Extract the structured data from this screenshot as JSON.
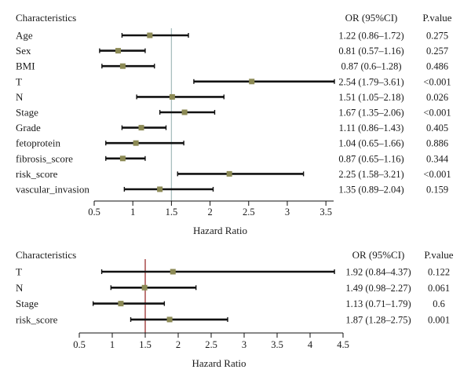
{
  "chart_data": [
    {
      "type": "forest",
      "header_label": "Characteristics",
      "header_or": "OR (95%CI)",
      "header_p": "P.value",
      "xlabel": "Hazard Ratio",
      "xlim": [
        0.5,
        3.6
      ],
      "xticks": [
        "0.5",
        "1",
        "1.5",
        "2",
        "2.5",
        "3",
        "3.5"
      ],
      "reference_line": 1.5,
      "reference_color": "#a9bfbf",
      "point_color": "#8c8a55",
      "rows": [
        {
          "label": "Age",
          "or": 1.22,
          "lo": 0.86,
          "hi": 1.72,
          "or_text": "1.22 (0.86–1.72)",
          "p": "0.275"
        },
        {
          "label": "Sex",
          "or": 0.81,
          "lo": 0.57,
          "hi": 1.16,
          "or_text": "0.81 (0.57–1.16)",
          "p": "0.257"
        },
        {
          "label": "BMI",
          "or": 0.87,
          "lo": 0.6,
          "hi": 1.28,
          "or_text": "0.87 (0.6–1.28)",
          "p": "0.486"
        },
        {
          "label": "T",
          "or": 2.54,
          "lo": 1.79,
          "hi": 3.61,
          "or_text": "2.54 (1.79–3.61)",
          "p": "<0.001"
        },
        {
          "label": "N",
          "or": 1.51,
          "lo": 1.05,
          "hi": 2.18,
          "or_text": "1.51 (1.05–2.18)",
          "p": "0.026"
        },
        {
          "label": "Stage",
          "or": 1.67,
          "lo": 1.35,
          "hi": 2.06,
          "or_text": "1.67 (1.35–2.06)",
          "p": "<0.001"
        },
        {
          "label": "Grade",
          "or": 1.11,
          "lo": 0.86,
          "hi": 1.43,
          "or_text": "1.11 (0.86–1.43)",
          "p": "0.405"
        },
        {
          "label": "fetoprotein",
          "or": 1.04,
          "lo": 0.65,
          "hi": 1.66,
          "or_text": "1.04 (0.65–1.66)",
          "p": "0.886"
        },
        {
          "label": "fibrosis_score",
          "or": 0.87,
          "lo": 0.65,
          "hi": 1.16,
          "or_text": "0.87 (0.65–1.16)",
          "p": "0.344"
        },
        {
          "label": "risk_score",
          "or": 2.25,
          "lo": 1.58,
          "hi": 3.21,
          "or_text": "2.25 (1.58–3.21)",
          "p": "<0.001"
        },
        {
          "label": "vascular_invasion",
          "or": 1.35,
          "lo": 0.89,
          "hi": 2.04,
          "or_text": "1.35 (0.89–2.04)",
          "p": "0.159"
        }
      ]
    },
    {
      "type": "forest",
      "header_label": "Characteristics",
      "header_or": "OR (95%CI)",
      "header_p": "P.value",
      "xlabel": "Hazard Ratio",
      "xlim": [
        0.5,
        4.5
      ],
      "xticks": [
        "0.5",
        "1",
        "1.5",
        "2",
        "2.5",
        "3",
        "3.5",
        "4",
        "4.5"
      ],
      "reference_line": 1.5,
      "reference_color": "#9a3030",
      "point_color": "#8c8a55",
      "rows": [
        {
          "label": "T",
          "or": 1.92,
          "lo": 0.84,
          "hi": 4.37,
          "or_text": "1.92 (0.84–4.37)",
          "p": "0.122"
        },
        {
          "label": "N",
          "or": 1.49,
          "lo": 0.98,
          "hi": 2.27,
          "or_text": "1.49 (0.98–2.27)",
          "p": "0.061"
        },
        {
          "label": "Stage",
          "or": 1.13,
          "lo": 0.71,
          "hi": 1.79,
          "or_text": "1.13 (0.71–1.79)",
          "p": "0.6"
        },
        {
          "label": "risk_score",
          "or": 1.87,
          "lo": 1.28,
          "hi": 2.75,
          "or_text": "1.87 (1.28–2.75)",
          "p": "0.001"
        }
      ]
    }
  ]
}
